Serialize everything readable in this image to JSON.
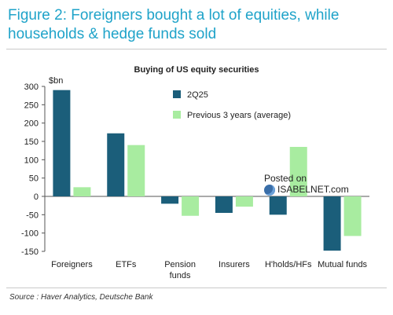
{
  "figure": {
    "title": "Figure 2: Foreigners bought a lot of equities, while households & hedge funds sold",
    "source": "Source : Haver Analytics, Deutsche Bank",
    "watermark": {
      "line1": "Posted on",
      "line2": "ISABELNET.com"
    }
  },
  "chart_data": {
    "type": "bar",
    "title": "Buying of US equity securities",
    "ylabel": "$bn",
    "ylim": [
      -150,
      300
    ],
    "yticks": [
      300,
      250,
      200,
      150,
      100,
      50,
      0,
      -50,
      -100,
      -150
    ],
    "categories": [
      "Foreigners",
      "ETFs",
      "Pension\nfunds",
      "Insurers",
      "H'holds/HFs",
      "Mutual funds"
    ],
    "series": [
      {
        "name": "2Q25",
        "color": "#1b5e7a",
        "values": [
          290,
          172,
          -20,
          -45,
          -50,
          -148
        ]
      },
      {
        "name": "Previous 3 years (average)",
        "color": "#a8eca0",
        "values": [
          25,
          140,
          -53,
          -28,
          135,
          -108
        ]
      }
    ],
    "legend_position": "upper-right",
    "grid": false
  }
}
